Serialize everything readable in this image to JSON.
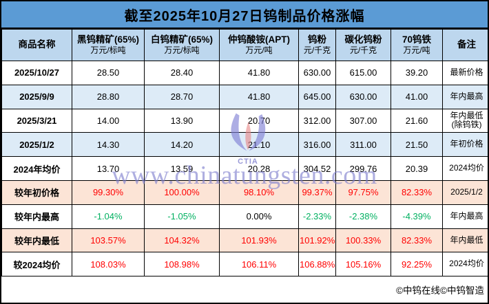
{
  "title": "截至2025年10月27日钨制品价格涨幅",
  "chart_data": {
    "type": "table",
    "title": "截至2025年10月27日钨制品价格涨幅",
    "product_header": "商品名称",
    "remark_header": "备注",
    "columns": [
      {
        "key": "heitungsten",
        "name": "黑钨精矿(65%)",
        "unit": "万元/标吨"
      },
      {
        "key": "baitungsten",
        "name": "白钨精矿(65%)",
        "unit": "万元/标吨"
      },
      {
        "key": "apt",
        "name": "仲钨酸铵(APT)",
        "unit": "万元/吨"
      },
      {
        "key": "wpowder",
        "name": "钨粉",
        "unit": "元/千克"
      },
      {
        "key": "wcpowder",
        "name": "碳化钨粉",
        "unit": "元/千克"
      },
      {
        "key": "ferro70",
        "name": "70钨铁",
        "unit": "万元/吨"
      }
    ],
    "rows": [
      {
        "label": "2025/10/27",
        "bg": "white",
        "cells": [
          {
            "t": "28.50",
            "c": "black"
          },
          {
            "t": "28.40",
            "c": "black"
          },
          {
            "t": "41.80",
            "c": "black"
          },
          {
            "t": "630.00",
            "c": "black"
          },
          {
            "t": "615.00",
            "c": "black"
          },
          {
            "t": "39.20",
            "c": "black"
          }
        ],
        "remark": "最新价格"
      },
      {
        "label": "2025/9/9",
        "bg": "blue",
        "cells": [
          {
            "t": "28.80",
            "c": "black"
          },
          {
            "t": "28.70",
            "c": "black"
          },
          {
            "t": "41.80",
            "c": "black"
          },
          {
            "t": "645.00",
            "c": "black"
          },
          {
            "t": "630.00",
            "c": "black"
          },
          {
            "t": "41.00",
            "c": "black"
          }
        ],
        "remark": "年内最高"
      },
      {
        "label": "2025/3/21",
        "bg": "white",
        "cells": [
          {
            "t": "14.00",
            "c": "black"
          },
          {
            "t": "13.90",
            "c": "black"
          },
          {
            "t": "20.70",
            "c": "black"
          },
          {
            "t": "312.00",
            "c": "black"
          },
          {
            "t": "307.00",
            "c": "black"
          },
          {
            "t": "21.60",
            "c": "black"
          }
        ],
        "remark": "年内最低",
        "remark2": "(除钨铁)"
      },
      {
        "label": "2025/1/2",
        "bg": "blue",
        "cells": [
          {
            "t": "14.30",
            "c": "black"
          },
          {
            "t": "14.20",
            "c": "black"
          },
          {
            "t": "21.10",
            "c": "black"
          },
          {
            "t": "316.00",
            "c": "black"
          },
          {
            "t": "311.00",
            "c": "black"
          },
          {
            "t": "21.50",
            "c": "black"
          }
        ],
        "remark": "年初价格"
      },
      {
        "label": "2024年均价",
        "bg": "white",
        "cells": [
          {
            "t": "13.70",
            "c": "black"
          },
          {
            "t": "13.59",
            "c": "black"
          },
          {
            "t": "20.28",
            "c": "black"
          },
          {
            "t": "304.52",
            "c": "black"
          },
          {
            "t": "299.76",
            "c": "black"
          },
          {
            "t": "20.39",
            "c": "black"
          }
        ],
        "remark": "2024均价"
      },
      {
        "label": "较年初价格",
        "bg": "pink",
        "cells": [
          {
            "t": "99.30%",
            "c": "red"
          },
          {
            "t": "100.00%",
            "c": "red"
          },
          {
            "t": "98.10%",
            "c": "red"
          },
          {
            "t": "99.37%",
            "c": "red"
          },
          {
            "t": "97.75%",
            "c": "red"
          },
          {
            "t": "82.33%",
            "c": "red"
          }
        ],
        "remark": "2025/1/2"
      },
      {
        "label": "较年内最高",
        "bg": "white",
        "cells": [
          {
            "t": "-1.04%",
            "c": "green"
          },
          {
            "t": "-1.05%",
            "c": "green"
          },
          {
            "t": "0.00%",
            "c": "black"
          },
          {
            "t": "-2.33%",
            "c": "green"
          },
          {
            "t": "-2.38%",
            "c": "green"
          },
          {
            "t": "-4.39%",
            "c": "green"
          }
        ],
        "remark": "年内最高"
      },
      {
        "label": "较年内最低",
        "bg": "pink",
        "cells": [
          {
            "t": "103.57%",
            "c": "red"
          },
          {
            "t": "104.32%",
            "c": "red"
          },
          {
            "t": "101.93%",
            "c": "red"
          },
          {
            "t": "101.92%",
            "c": "red"
          },
          {
            "t": "100.33%",
            "c": "red"
          },
          {
            "t": "82.33%",
            "c": "red"
          }
        ],
        "remark": "年内最低"
      },
      {
        "label": "较2024均价",
        "bg": "white",
        "cells": [
          {
            "t": "108.03%",
            "c": "red"
          },
          {
            "t": "108.98%",
            "c": "red"
          },
          {
            "t": "106.11%",
            "c": "red"
          },
          {
            "t": "106.88%",
            "c": "red"
          },
          {
            "t": "105.16%",
            "c": "red"
          },
          {
            "t": "92.25%",
            "c": "red"
          }
        ],
        "remark": "2024均价"
      }
    ]
  },
  "footer": {
    "credit": "©中钨在线©中钨智造"
  },
  "watermark": {
    "text": "www.chinatungsten.com",
    "logo_label": "CTIA"
  },
  "colors": {
    "title_bar": "#5b9bd5",
    "header_bg": "#bdd7ee",
    "row_alt_bg": "#ddebf7",
    "highlight_bg": "#fce4d6",
    "red": "#ff0000",
    "green": "#00b060",
    "black": "#000000",
    "watermark": "#7d7dcd"
  }
}
